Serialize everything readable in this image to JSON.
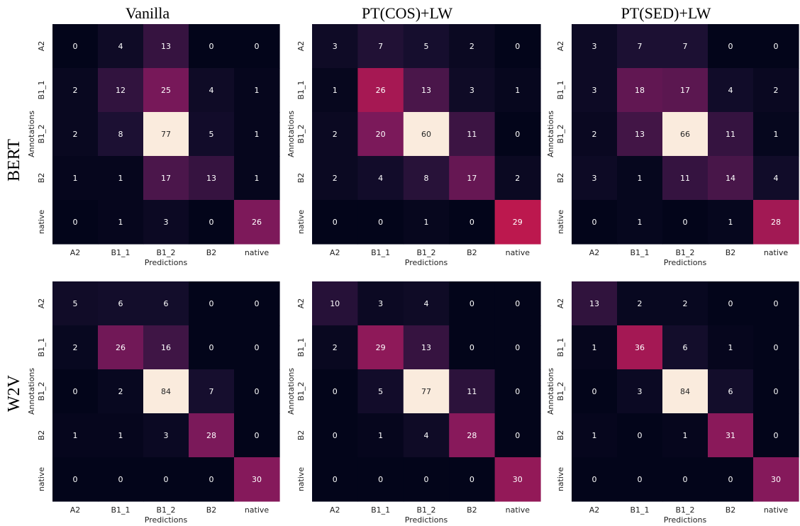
{
  "row_titles": [
    "BERT",
    "W2V"
  ],
  "col_titles": [
    "Vanilla",
    "PT(COS)+LW",
    "PT(SED)+LW"
  ],
  "chart_data": [
    {
      "type": "heatmap",
      "model": "BERT",
      "method": "Vanilla",
      "xlabel": "Predictions",
      "ylabel": "Annotations",
      "x_labels": [
        "A2",
        "B1_1",
        "B1_2",
        "B2",
        "native"
      ],
      "y_labels": [
        "A2",
        "B1_1",
        "B1_2",
        "B2",
        "native"
      ],
      "matrix": [
        [
          0,
          4,
          13,
          0,
          0
        ],
        [
          2,
          12,
          25,
          4,
          1
        ],
        [
          2,
          8,
          77,
          5,
          1
        ],
        [
          1,
          1,
          17,
          13,
          1
        ],
        [
          0,
          1,
          3,
          0,
          26
        ]
      ],
      "vmax": 77,
      "colormap": "rocket"
    },
    {
      "type": "heatmap",
      "model": "BERT",
      "method": "PT(COS)+LW",
      "xlabel": "Predictions",
      "ylabel": "Annotations",
      "x_labels": [
        "A2",
        "B1_1",
        "B1_2",
        "B2",
        "native"
      ],
      "y_labels": [
        "A2",
        "B1_1",
        "B1_2",
        "B2",
        "native"
      ],
      "matrix": [
        [
          3,
          7,
          5,
          2,
          0
        ],
        [
          1,
          26,
          13,
          3,
          1
        ],
        [
          2,
          20,
          60,
          11,
          0
        ],
        [
          2,
          4,
          8,
          17,
          2
        ],
        [
          0,
          0,
          1,
          0,
          29
        ]
      ],
      "vmax": 60,
      "colormap": "rocket"
    },
    {
      "type": "heatmap",
      "model": "BERT",
      "method": "PT(SED)+LW",
      "xlabel": "Predictions",
      "ylabel": "Annotations",
      "x_labels": [
        "A2",
        "B1_1",
        "B1_2",
        "B2",
        "native"
      ],
      "y_labels": [
        "A2",
        "B1_1",
        "B1_2",
        "B2",
        "native"
      ],
      "matrix": [
        [
          3,
          7,
          7,
          0,
          0
        ],
        [
          3,
          18,
          17,
          4,
          2
        ],
        [
          2,
          13,
          66,
          11,
          1
        ],
        [
          3,
          1,
          11,
          14,
          4
        ],
        [
          0,
          1,
          0,
          1,
          28
        ]
      ],
      "vmax": 66,
      "colormap": "rocket"
    },
    {
      "type": "heatmap",
      "model": "W2V",
      "method": "Vanilla",
      "xlabel": "Predictions",
      "ylabel": "Annotations",
      "x_labels": [
        "A2",
        "B1_1",
        "B1_2",
        "B2",
        "native"
      ],
      "y_labels": [
        "A2",
        "B1_1",
        "B1_2",
        "B2",
        "native"
      ],
      "matrix": [
        [
          5,
          6,
          6,
          0,
          0
        ],
        [
          2,
          26,
          16,
          0,
          0
        ],
        [
          0,
          2,
          84,
          7,
          0
        ],
        [
          1,
          1,
          3,
          28,
          0
        ],
        [
          0,
          0,
          0,
          0,
          30
        ]
      ],
      "vmax": 84,
      "colormap": "rocket"
    },
    {
      "type": "heatmap",
      "model": "W2V",
      "method": "PT(COS)+LW",
      "xlabel": "Predictions",
      "ylabel": "Annotations",
      "x_labels": [
        "A2",
        "B1_1",
        "B1_2",
        "B2",
        "native"
      ],
      "y_labels": [
        "A2",
        "B1_1",
        "B1_2",
        "B2",
        "native"
      ],
      "matrix": [
        [
          10,
          3,
          4,
          0,
          0
        ],
        [
          2,
          29,
          13,
          0,
          0
        ],
        [
          0,
          5,
          77,
          11,
          0
        ],
        [
          0,
          1,
          4,
          28,
          0
        ],
        [
          0,
          0,
          0,
          0,
          30
        ]
      ],
      "vmax": 77,
      "colormap": "rocket"
    },
    {
      "type": "heatmap",
      "model": "W2V",
      "method": "PT(SED)+LW",
      "xlabel": "Predictions",
      "ylabel": "Annotations",
      "x_labels": [
        "A2",
        "B1_1",
        "B1_2",
        "B2",
        "native"
      ],
      "y_labels": [
        "A2",
        "B1_1",
        "B1_2",
        "B2",
        "native"
      ],
      "matrix": [
        [
          13,
          2,
          2,
          0,
          0
        ],
        [
          1,
          36,
          6,
          1,
          0
        ],
        [
          0,
          3,
          84,
          6,
          0
        ],
        [
          1,
          0,
          1,
          31,
          0
        ],
        [
          0,
          0,
          0,
          0,
          30
        ]
      ],
      "vmax": 84,
      "colormap": "rocket"
    }
  ]
}
